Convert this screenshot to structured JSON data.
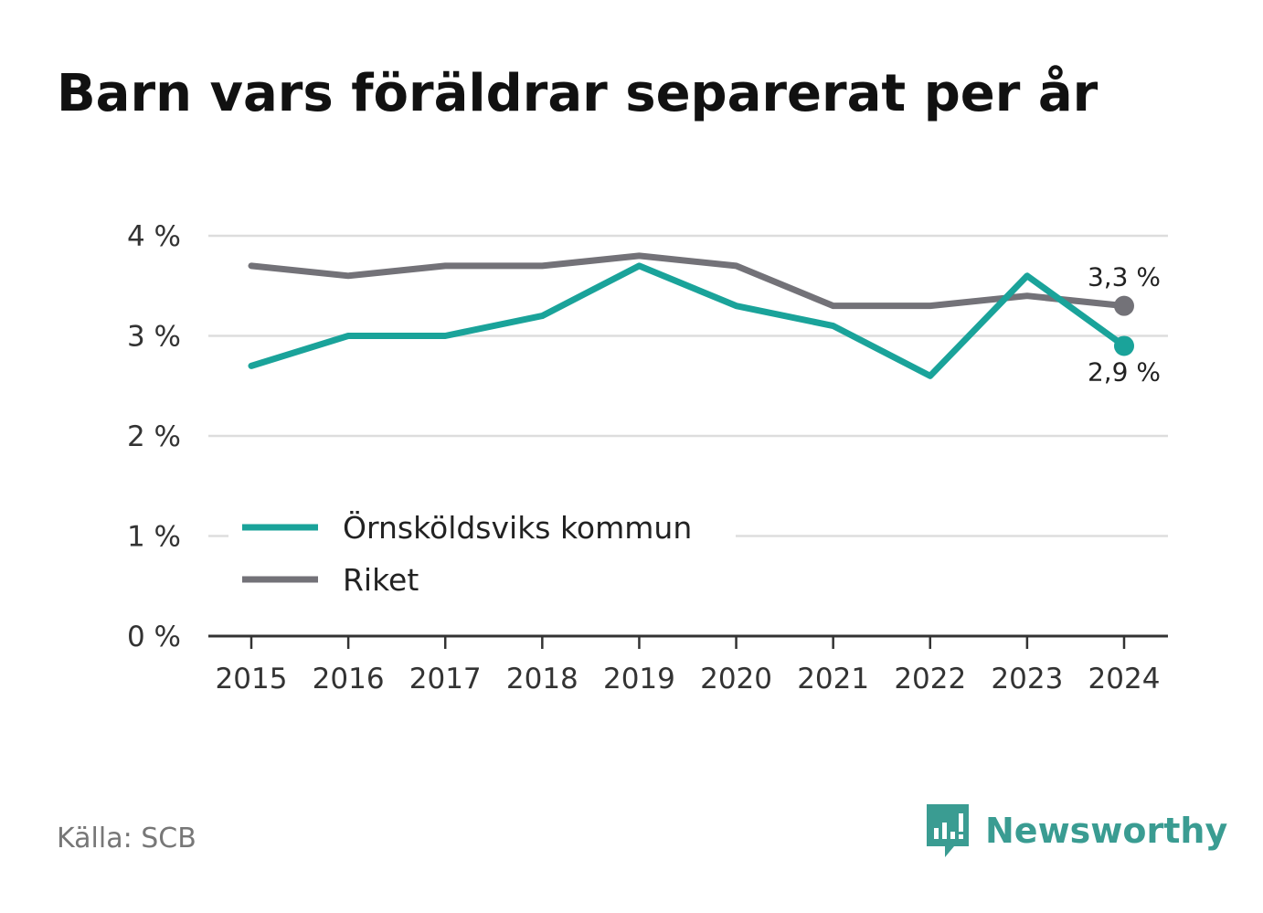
{
  "title": "Barn vars föräldrar separerat per år",
  "source": "Källa: SCB",
  "brand": {
    "name": "Newsworthy",
    "icon": "newsworthy-logo-icon",
    "color": "#3a9c92"
  },
  "colors": {
    "kommun": "#1aa39a",
    "riket": "#737278",
    "axis": "#333333",
    "grid": "#dddddd"
  },
  "chart_data": {
    "type": "line",
    "x": [
      "2015",
      "2016",
      "2017",
      "2018",
      "2019",
      "2020",
      "2021",
      "2022",
      "2023",
      "2024"
    ],
    "series": [
      {
        "name": "Örnsköldsviks kommun",
        "values": [
          2.7,
          3.0,
          3.0,
          3.2,
          3.7,
          3.3,
          3.1,
          2.6,
          3.6,
          2.9
        ],
        "end_label": "2,9 %"
      },
      {
        "name": "Riket",
        "values": [
          3.7,
          3.6,
          3.7,
          3.7,
          3.8,
          3.7,
          3.3,
          3.3,
          3.4,
          3.3
        ],
        "end_label": "3,3 %"
      }
    ],
    "ylim": [
      0,
      4
    ],
    "yticks": [
      0,
      1,
      2,
      3,
      4
    ],
    "ytick_labels": [
      "0 %",
      "1 %",
      "2 %",
      "3 %",
      "4 %"
    ],
    "grid": true,
    "legend": "bottom-left"
  }
}
